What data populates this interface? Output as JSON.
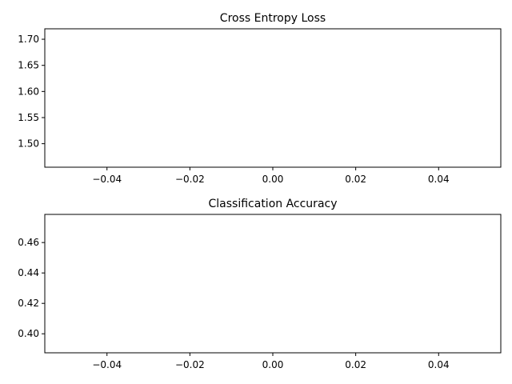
{
  "chart_data": [
    {
      "type": "line",
      "title": "Cross Entropy Loss",
      "xlabel": "",
      "ylabel": "",
      "series": [],
      "xlim": [
        -0.055,
        0.055
      ],
      "ylim": [
        1.455,
        1.72
      ],
      "xticks": [
        -0.04,
        -0.02,
        0.0,
        0.02,
        0.04
      ],
      "xtick_labels": [
        "−0.04",
        "−0.02",
        "0.00",
        "0.02",
        "0.04"
      ],
      "yticks": [
        1.5,
        1.55,
        1.6,
        1.65,
        1.7
      ],
      "ytick_labels": [
        "1.50",
        "1.55",
        "1.60",
        "1.65",
        "1.70"
      ],
      "grid": false
    },
    {
      "type": "line",
      "title": "Classification Accuracy",
      "xlabel": "",
      "ylabel": "",
      "series": [],
      "xlim": [
        -0.055,
        0.055
      ],
      "ylim": [
        0.3875,
        0.4785
      ],
      "xticks": [
        -0.04,
        -0.02,
        0.0,
        0.02,
        0.04
      ],
      "xtick_labels": [
        "−0.04",
        "−0.02",
        "0.00",
        "0.02",
        "0.04"
      ],
      "yticks": [
        0.4,
        0.42,
        0.44,
        0.46
      ],
      "ytick_labels": [
        "0.40",
        "0.42",
        "0.44",
        "0.46"
      ],
      "grid": false
    }
  ]
}
